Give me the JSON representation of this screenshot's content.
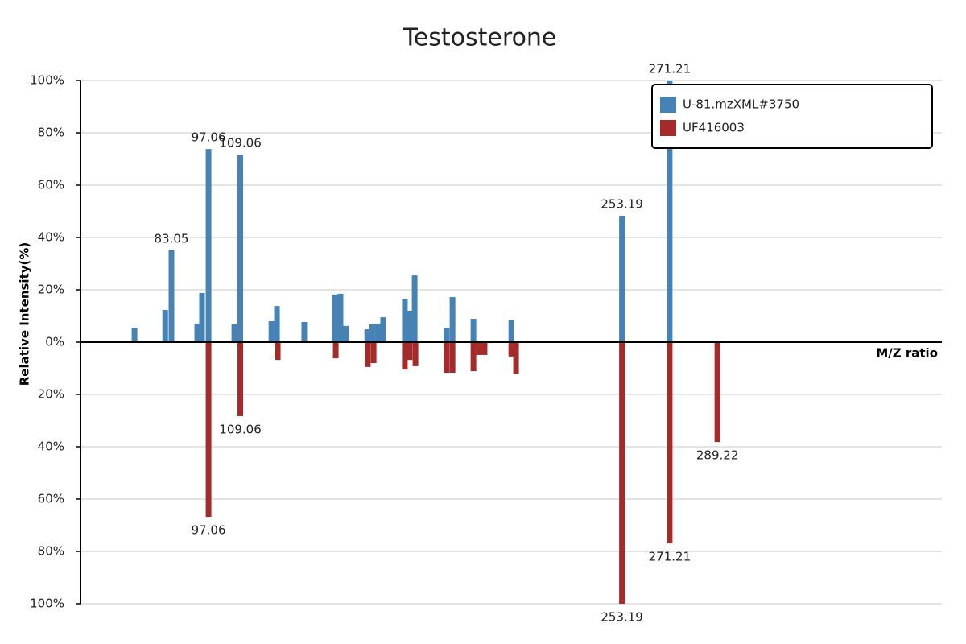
{
  "chart_data": {
    "type": "mirror-bar",
    "title": "Testosterone",
    "y_label": "Relative Intensity(%)",
    "x_label": "M/Z ratio",
    "xlim": [
      48.7,
      374
    ],
    "ylim": [
      -100,
      100
    ],
    "yticks": [
      {
        "value": 100,
        "label": "100%"
      },
      {
        "value": 80,
        "label": "80%"
      },
      {
        "value": 60,
        "label": "60%"
      },
      {
        "value": 40,
        "label": "40%"
      },
      {
        "value": 20,
        "label": "20%"
      },
      {
        "value": 0,
        "label": "0%"
      },
      {
        "value": -20,
        "label": "20%"
      },
      {
        "value": -40,
        "label": "40%"
      },
      {
        "value": -60,
        "label": "60%"
      },
      {
        "value": -80,
        "label": "80%"
      },
      {
        "value": -100,
        "label": "100%"
      }
    ],
    "grid": true,
    "legend": "top-right",
    "series": [
      {
        "name": "U-81.mzXML#3750",
        "color": "#4682b4",
        "x": [
          69.1,
          80.7,
          83.05,
          92.8,
          94.6,
          97.06,
          106.8,
          109.06,
          120.8,
          122.9,
          133.2,
          144.8,
          146.9,
          149.0,
          157.0,
          158.8,
          160.9,
          163.0,
          171.2,
          173.0,
          174.9,
          187.0,
          189.2,
          197.1,
          211.4,
          253.19,
          271.21
        ],
        "values": [
          5.5,
          12.3,
          35.1,
          7.1,
          18.8,
          73.8,
          6.8,
          71.7,
          8.0,
          13.8,
          7.7,
          18.2,
          18.5,
          6.2,
          4.9,
          6.8,
          7.1,
          9.5,
          16.6,
          12.0,
          25.5,
          5.5,
          17.2,
          8.9,
          8.3,
          48.3,
          100
        ],
        "labels": [
          null,
          null,
          "83.05",
          null,
          null,
          "97.06",
          null,
          "109.06",
          null,
          null,
          null,
          null,
          null,
          null,
          null,
          null,
          null,
          null,
          null,
          null,
          null,
          null,
          null,
          null,
          null,
          "253.19",
          "271.21"
        ]
      },
      {
        "name": "UF416003",
        "color": "#a52a2a",
        "x": [
          97.06,
          109.06,
          123.2,
          145.1,
          157.2,
          159.4,
          171.2,
          173.0,
          175.2,
          187.0,
          189.2,
          197.1,
          199.2,
          201.3,
          211.4,
          213.2,
          253.19,
          271.21,
          289.22
        ],
        "values": [
          -66.8,
          -28.3,
          -6.8,
          -6.2,
          -9.5,
          -8.0,
          -10.5,
          -6.8,
          -9.2,
          -11.7,
          -11.7,
          -11.1,
          -4.9,
          -4.9,
          -5.5,
          -12.0,
          -100,
          -76.9,
          -38.2
        ],
        "labels": [
          "97.06",
          "109.06",
          null,
          null,
          null,
          null,
          null,
          null,
          null,
          null,
          null,
          null,
          null,
          null,
          null,
          null,
          "253.19",
          "271.21",
          "289.22"
        ]
      }
    ]
  }
}
